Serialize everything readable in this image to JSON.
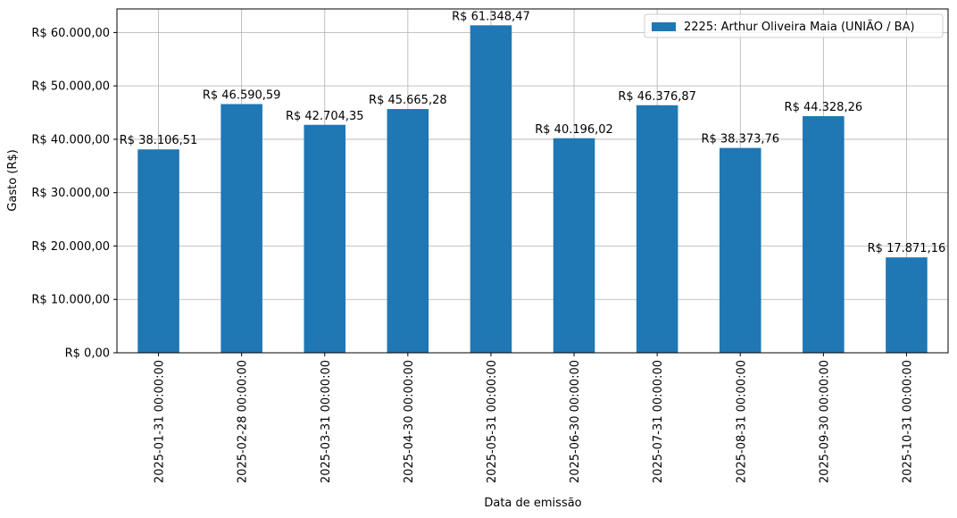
{
  "chart_data": {
    "type": "bar",
    "x_label": "Data de emissão",
    "y_label": "Gasto (R$)",
    "categories": [
      "2025-01-31 00:00:00",
      "2025-02-28 00:00:00",
      "2025-03-31 00:00:00",
      "2025-04-30 00:00:00",
      "2025-05-31 00:00:00",
      "2025-06-30 00:00:00",
      "2025-07-31 00:00:00",
      "2025-08-31 00:00:00",
      "2025-09-30 00:00:00",
      "2025-10-31 00:00:00"
    ],
    "series": [
      {
        "name": "2225: Arthur Oliveira Maia (UNIÃO / BA)",
        "color": "#1f77b4",
        "values": [
          38106.51,
          46590.59,
          42704.35,
          45665.28,
          61348.47,
          40196.02,
          46376.87,
          38373.76,
          44328.26,
          17871.16
        ],
        "value_labels": [
          "R$ 38.106,51",
          "R$ 46.590,59",
          "R$ 42.704,35",
          "R$ 45.665,28",
          "R$ 61.348,47",
          "R$ 40.196,02",
          "R$ 46.376,87",
          "R$ 38.373,76",
          "R$ 44.328,26",
          "R$ 17.871,16"
        ]
      }
    ],
    "ylim": [
      0,
      64415.89
    ],
    "yticks": [
      {
        "value": 0,
        "label": "R$ 0,00"
      },
      {
        "value": 10000,
        "label": "R$ 10.000,00"
      },
      {
        "value": 20000,
        "label": "R$ 20.000,00"
      },
      {
        "value": 30000,
        "label": "R$ 30.000,00"
      },
      {
        "value": 40000,
        "label": "R$ 40.000,00"
      },
      {
        "value": 50000,
        "label": "R$ 50.000,00"
      },
      {
        "value": 60000,
        "label": "R$ 60.000,00"
      }
    ],
    "grid": true,
    "legend": "upper right"
  }
}
